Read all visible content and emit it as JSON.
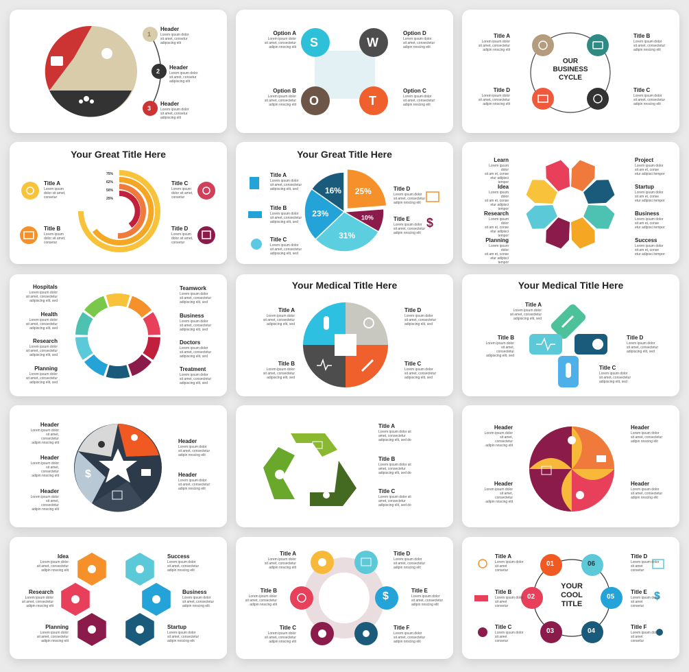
{
  "lorem": {
    "l1": "Lorem ipsum dolor",
    "l2": "sit amet, consectetur",
    "l3": "adipiscing elit, sed",
    "l4": "adipin nnscing elit",
    "l5": "Lorem ipsum dolor sit",
    "l6": "amet, consectetur",
    "l7": "adipiscing elit, sed do",
    "m1": "Lorem ipsum",
    "m2": "dolor sit amet,",
    "m3": "consetur",
    "s1": "Lorem ipsum dolor",
    "s2": "sit am et, conse",
    "s3": "etur adipisci tempor",
    "h1": "Lorem ipsum dolor sit",
    "h2": "sit amet, consectet",
    "h3": "adipiscing elit, sed",
    "a1": "Lorem ipsum dolor",
    "a2": "sit amet, consectetur",
    "a3": "adipiscing elit, sed",
    "b1": "Lorem ipsum dolor",
    "b2": "sit amet",
    "b3": "consetur",
    "k1": "sit amet, consetur",
    "k2": "adipiscing elit"
  },
  "card1": {
    "h1": "Header",
    "h2": "Header",
    "h3": "Header",
    "n1": "1",
    "n2": "2",
    "n3": "3",
    "colors": [
      "#d8ccaa",
      "#cc3333",
      "#333333"
    ]
  },
  "card2": {
    "a": "Option A",
    "b": "Option B",
    "c": "Option C",
    "d": "Option D",
    "S": "S",
    "W": "W",
    "O": "O",
    "T": "T"
  },
  "card3": {
    "a": "Title A",
    "b": "Title B",
    "c": "Title C",
    "d": "Title D",
    "center": [
      "OUR",
      "BUSINESS",
      "CYCLE"
    ]
  },
  "card4": {
    "title": "Your Great Title Here",
    "a": "Title A",
    "b": "Title B",
    "c": "Title C",
    "d": "Title D",
    "pcts": [
      "75%",
      "62%",
      "50%",
      "25%"
    ]
  },
  "card5": {
    "title": "Your Great Title Here",
    "a": "Title A",
    "b": "Title B",
    "c": "Title C",
    "d": "Title D",
    "e": "Title E",
    "chart_data": {
      "type": "pie",
      "values": [
        25,
        10,
        31,
        23,
        16
      ],
      "labels": [
        "25%",
        "10%",
        "31%",
        "23%",
        "16%"
      ]
    }
  },
  "card6": {
    "learn": "Learn",
    "idea": "Idea",
    "research": "Research",
    "planning": "Planning",
    "project": "Project",
    "startup": "Startup",
    "business": "Business",
    "success": "Success"
  },
  "card7": {
    "hospitals": "Hospitals",
    "health": "Health",
    "research": "Research",
    "planning": "Planning",
    "teamwork": "Teamwork",
    "business": "Business",
    "doctors": "Doctors",
    "treatment": "Treatment"
  },
  "card8": {
    "title": "Your Medical Title Here",
    "a": "Title A",
    "b": "Title B",
    "c": "Title C",
    "d": "Title D"
  },
  "card9": {
    "title": "Your Medical Title Here",
    "a": "Title A",
    "b": "Title B",
    "c": "Title C",
    "d": "Title D"
  },
  "card10": {
    "h": "Header"
  },
  "card11": {
    "a": "Title A",
    "b": "Title B",
    "c": "Title C"
  },
  "card12": {
    "h": "Header"
  },
  "card13": {
    "idea": "Idea",
    "research": "Research",
    "planning": "Planning",
    "success": "Success",
    "business": "Business",
    "startup": "Startup"
  },
  "card14": {
    "a": "Title A",
    "b": "Title B",
    "c": "Title C",
    "d": "Title D",
    "e": "Title E",
    "f": "Title F"
  },
  "card15": {
    "a": "Title A",
    "b": "Title B",
    "c": "Title C",
    "d": "Title D",
    "e": "Title E",
    "f": "Title F",
    "nums": [
      "01",
      "06",
      "02",
      "05",
      "03",
      "04"
    ],
    "center": [
      "YOUR",
      "COOL",
      "TITLE"
    ]
  }
}
